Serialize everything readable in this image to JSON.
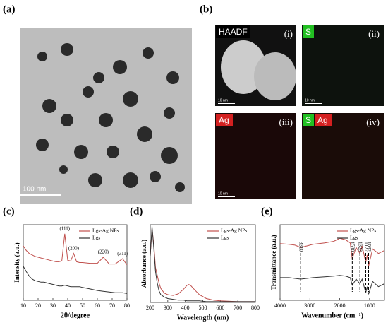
{
  "panels": {
    "a": {
      "label": "(a)",
      "scale_bar": "100 nm"
    },
    "b": {
      "label": "(b)",
      "maps": [
        {
          "tags": [
            "HAADF"
          ],
          "index": "(i)",
          "scale_bar": "10 nm"
        },
        {
          "tags": [
            "S"
          ],
          "index": "(ii)",
          "scale_bar": "10 nm"
        },
        {
          "tags": [
            "Ag"
          ],
          "index": "(iii)",
          "scale_bar": "10 nm"
        },
        {
          "tags": [
            "S",
            "Ag"
          ],
          "index": "(iv)"
        }
      ]
    },
    "c": {
      "label": "(c)"
    },
    "d": {
      "label": "(d)"
    },
    "e": {
      "label": "(e)"
    }
  },
  "chart_data": [
    {
      "type": "line",
      "x_label": "2θ/degree",
      "y_label": "Intensity (a.u.)",
      "xlim": [
        10,
        80
      ],
      "xticks": [
        10,
        20,
        30,
        40,
        50,
        60,
        70,
        80
      ],
      "ylim": [
        0,
        100
      ],
      "annotation_style": "peak",
      "x": [
        10,
        12,
        14,
        16,
        18,
        20,
        22,
        24,
        26,
        28,
        30,
        32,
        34,
        36,
        38,
        40,
        42,
        44,
        46,
        48,
        50,
        55,
        60,
        64,
        68,
        72,
        77,
        80
      ],
      "series": [
        {
          "name": "Lgs-Ag NPs",
          "color": "#c0504d",
          "values": [
            72,
            66,
            62,
            60,
            58,
            57,
            56,
            55,
            54,
            53,
            52,
            51,
            51,
            52,
            88,
            53,
            52,
            62,
            51,
            50,
            50,
            49,
            49,
            57,
            48,
            48,
            55,
            47
          ]
        },
        {
          "name": "Lgs",
          "color": "#333333",
          "values": [
            45,
            38,
            32,
            28,
            26,
            25,
            24,
            24,
            23,
            22,
            21,
            20,
            19,
            19,
            20,
            19,
            18,
            18,
            18,
            18,
            17,
            15,
            13,
            12,
            11,
            10,
            10,
            9
          ]
        }
      ],
      "annotations": [
        {
          "text": "(111)",
          "x": 38
        },
        {
          "text": "(200)",
          "x": 44
        },
        {
          "text": "(220)",
          "x": 64
        },
        {
          "text": "(311)",
          "x": 77
        }
      ]
    },
    {
      "type": "line",
      "x_label": "Wavelength (nm)",
      "y_label": "Absorbance (a.u.)",
      "xlim": [
        200,
        800
      ],
      "xticks": [
        200,
        300,
        400,
        500,
        600,
        700,
        800
      ],
      "ylim": [
        0,
        100
      ],
      "x": [
        200,
        210,
        220,
        230,
        240,
        250,
        260,
        280,
        300,
        330,
        360,
        390,
        410,
        420,
        430,
        450,
        480,
        520,
        560,
        600,
        700,
        800
      ],
      "series": [
        {
          "name": "Lgs-Ag NPs",
          "color": "#c0504d",
          "values": [
            60,
            95,
            75,
            45,
            35,
            25,
            18,
            12,
            10,
            9,
            11,
            17,
            22,
            23,
            22,
            17,
            10,
            5,
            3,
            2,
            1,
            1
          ]
        },
        {
          "name": "Lgs",
          "color": "#333333",
          "values": [
            60,
            98,
            70,
            40,
            25,
            15,
            10,
            7,
            5,
            4,
            3,
            3,
            2,
            2,
            2,
            2,
            2,
            1,
            1,
            1,
            1,
            1
          ]
        }
      ]
    },
    {
      "type": "line",
      "x_label": "Wavenumber (cm⁻¹)",
      "y_label": "Transmittance (a.u.)",
      "xlim": [
        4000,
        500
      ],
      "xticks": [
        4000,
        3000,
        2000,
        1000
      ],
      "ylim": [
        0,
        100
      ],
      "annotation_style": "dashed-vertical",
      "x": [
        4000,
        3700,
        3500,
        3310,
        3100,
        2900,
        2500,
        2200,
        2000,
        1800,
        1650,
        1580,
        1450,
        1323,
        1250,
        1127,
        1080,
        1032,
        900,
        700,
        500
      ],
      "series": [
        {
          "name": "Lgs-Ag NPs",
          "color": "#c0504d",
          "values": [
            75,
            74,
            73,
            70,
            72,
            74,
            76,
            78,
            82,
            80,
            76,
            55,
            70,
            62,
            72,
            50,
            60,
            45,
            68,
            62,
            66
          ]
        },
        {
          "name": "Lgs",
          "color": "#333333",
          "values": [
            30,
            30,
            29,
            28,
            29,
            30,
            31,
            32,
            33,
            32,
            30,
            20,
            28,
            22,
            28,
            10,
            18,
            8,
            25,
            18,
            22
          ]
        }
      ],
      "annotations": [
        {
          "text": "3310",
          "x": 3310
        },
        {
          "text": "1580",
          "x": 1580
        },
        {
          "text": "1323",
          "x": 1323
        },
        {
          "text": "1127",
          "x": 1127
        },
        {
          "text": "1032",
          "x": 1032
        }
      ]
    }
  ]
}
